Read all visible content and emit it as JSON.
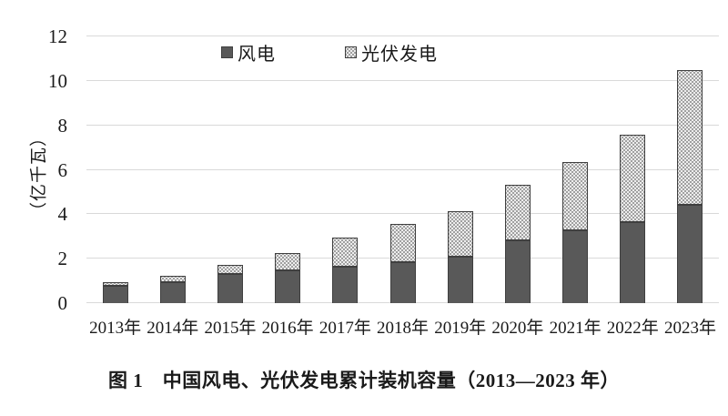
{
  "figure": {
    "caption": "图 1　中国风电、光伏发电累计装机容量（2013—2023 年）"
  },
  "chart_data": {
    "type": "bar",
    "stacked": true,
    "title": "",
    "ylabel": "（亿千瓦）",
    "xlabel": "",
    "ylim": [
      0,
      12
    ],
    "yticks": [
      0,
      2,
      4,
      6,
      8,
      10,
      12
    ],
    "grid": true,
    "legend_position": "top-center-inside",
    "categories": [
      "2013年",
      "2014年",
      "2015年",
      "2016年",
      "2017年",
      "2018年",
      "2019年",
      "2020年",
      "2021年",
      "2022年",
      "2023年"
    ],
    "series": [
      {
        "name": "风电",
        "style": "solid-dark-gray",
        "values": [
          0.77,
          0.96,
          1.31,
          1.49,
          1.64,
          1.84,
          2.1,
          2.81,
          3.28,
          3.65,
          4.41
        ]
      },
      {
        "name": "光伏发电",
        "style": "dotted-pattern",
        "values": [
          0.19,
          0.28,
          0.43,
          0.77,
          1.3,
          1.74,
          2.04,
          2.53,
          3.06,
          3.93,
          6.09
        ]
      }
    ],
    "totals": [
      0.96,
      1.24,
      1.74,
      2.26,
      2.94,
      3.58,
      4.14,
      5.34,
      6.34,
      7.58,
      10.5
    ],
    "colors": {
      "wind": "#595959",
      "solar_base": "#ededed",
      "solar_dot": "#8c8c8c",
      "edge": "#3f3f3f",
      "grid": "#d9d9d9",
      "text": "#1a1a1a"
    }
  }
}
